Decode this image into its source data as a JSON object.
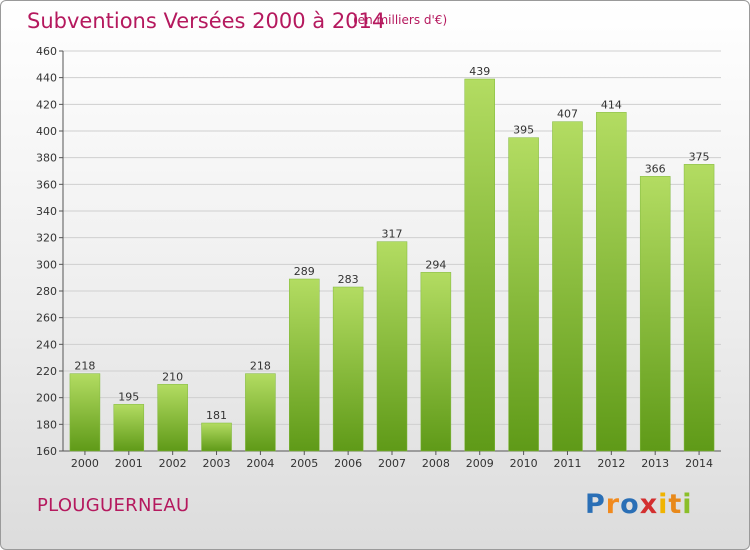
{
  "title": "Subventions Versées 2000 à 2014",
  "subtitle": "(en milliers d'€)",
  "commune": "PLOUGUERNEAU",
  "logo": {
    "letters": [
      "P",
      "r",
      "o",
      "x",
      "i",
      "t",
      "i"
    ],
    "colors": [
      "#2a6fb6",
      "#f18a1e",
      "#2a6fb6",
      "#d32f2f",
      "#f0b400",
      "#e8891a",
      "#8bbf2a"
    ]
  },
  "colors": {
    "bar_light": "#b3dc62",
    "bar_dark": "#5f9a18",
    "accent": "#b5195e"
  },
  "chart_data": {
    "type": "bar",
    "title": "Subventions Versées 2000 à 2014",
    "subtitle": "(en milliers d'€)",
    "categories": [
      "2000",
      "2001",
      "2002",
      "2003",
      "2004",
      "2005",
      "2006",
      "2007",
      "2008",
      "2009",
      "2010",
      "2011",
      "2012",
      "2013",
      "2014"
    ],
    "values": [
      218,
      195,
      210,
      181,
      218,
      289,
      283,
      317,
      294,
      439,
      395,
      407,
      414,
      366,
      375
    ],
    "labels": [
      "218",
      "195",
      "210",
      "181",
      "218",
      "289",
      "283",
      "317",
      "294",
      "439",
      "395",
      "407",
      "414",
      "366",
      "375"
    ],
    "ylim": [
      160,
      460
    ],
    "yticks": [
      "160",
      "180",
      "200",
      "220",
      "240",
      "260",
      "280",
      "300",
      "320",
      "340",
      "360",
      "380",
      "400",
      "420",
      "440",
      "460"
    ],
    "grid": true,
    "legend": false
  }
}
